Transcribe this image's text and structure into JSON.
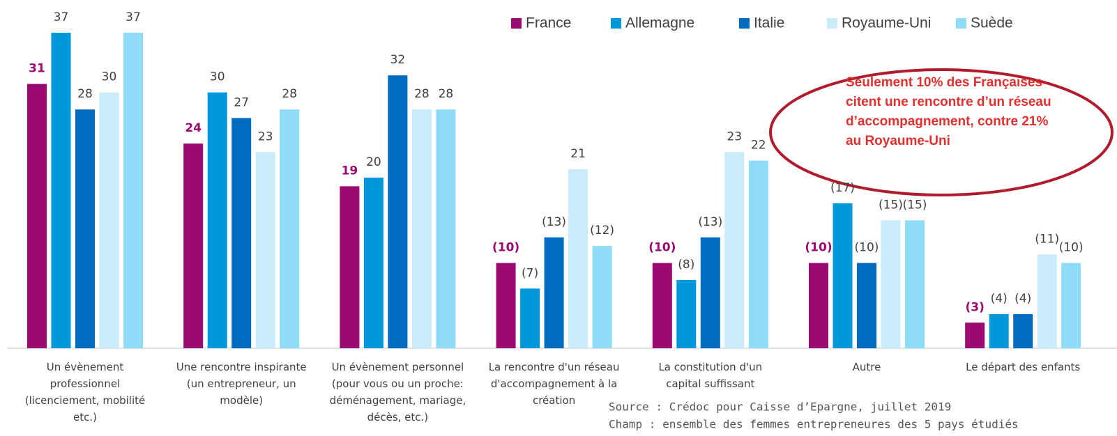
{
  "chart_data": {
    "type": "bar",
    "categories": [
      "Un évènement\nprofessionnel\n(licenciement, mobilité\netc.)",
      "Une rencontre inspirante\n(un entrepreneur, un\nmodèle)",
      "Un évènement personnel\n(pour vous ou un proche:\ndéménagement, mariage,\ndécès, etc.)",
      "La rencontre d'un réseau\nd'accompagnement à la\ncréation",
      "La constitution d'un\ncapital suffissant",
      "Autre",
      "Le départ des enfants"
    ],
    "series": [
      {
        "name": "France",
        "color": "#9b0a73",
        "values": [
          31,
          24,
          19,
          10,
          10,
          10,
          3
        ],
        "value_labels": [
          "31",
          "24",
          "19",
          "(10)",
          "(10)",
          "(10)",
          "(3)"
        ]
      },
      {
        "name": "Allemagne",
        "color": "#0098db",
        "values": [
          37,
          30,
          20,
          7,
          8,
          17,
          4
        ],
        "value_labels": [
          "37",
          "30",
          "20",
          "(7)",
          "(8)",
          "(17)",
          "(4)"
        ]
      },
      {
        "name": "Italie",
        "color": "#006bbf",
        "values": [
          28,
          27,
          32,
          13,
          13,
          10,
          4
        ],
        "value_labels": [
          "28",
          "27",
          "32",
          "(13)",
          "(13)",
          "(10)",
          "(4)"
        ]
      },
      {
        "name": "Royaume-Uni",
        "color": "#c9ebfa",
        "values": [
          30,
          23,
          28,
          21,
          23,
          15,
          11
        ],
        "value_labels": [
          "30",
          "23",
          "28",
          "21",
          "23",
          "(15)",
          "(11)"
        ]
      },
      {
        "name": "Suède",
        "color": "#8fdcf8",
        "values": [
          37,
          28,
          28,
          12,
          22,
          15,
          10
        ],
        "value_labels": [
          "37",
          "28",
          "28",
          "(12)",
          "22",
          "(15)",
          "(10)"
        ]
      }
    ],
    "annotation": [
      "Seulement 10% des Françaises",
      "citent une rencontre d’un réseau",
      "d’accompagnement, contre 21%",
      "au Royaume-Uni"
    ],
    "source": [
      "Source : Crédoc pour Caisse d’Epargne, juillet 2019",
      "Champ : ensemble des femmes entrepreneures des 5 pays étudiés"
    ]
  }
}
